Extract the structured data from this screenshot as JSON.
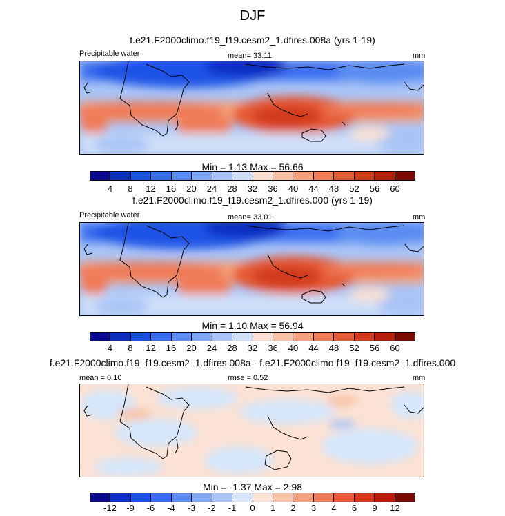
{
  "figure_title": "DJF",
  "panels": [
    {
      "run_title": "f.e21.F2000climo.f19_f19.cesm2_1.dfires.008a (yrs 1-19)",
      "left_label": "Precipitable water",
      "center_label": "mean=  33.11",
      "right_label": "mm",
      "minmax": "Min =  1.13 Max =  56.66"
    },
    {
      "run_title": "f.e21.F2000climo.f19_f19.cesm2_1.dfires.000 (yrs 1-19)",
      "left_label": "Precipitable water",
      "center_label": "mean=  33.01",
      "right_label": "mm",
      "minmax": "Min =  1.10 Max =  56.94"
    },
    {
      "run_title": "f.e21.F2000climo.f19_f19.cesm2_1.dfires.008a - f.e21.F2000climo.f19_f19.cesm2_1.dfires.000",
      "left_label": "mean =  0.10",
      "center_label": "rmse =  0.52",
      "right_label": "mm",
      "minmax": "Min = -1.37 Max =  2.98"
    }
  ],
  "colorbars": {
    "absolute": {
      "labels": [
        "4",
        "8",
        "12",
        "16",
        "20",
        "24",
        "28",
        "32",
        "36",
        "40",
        "44",
        "48",
        "52",
        "56",
        "60"
      ],
      "colors": [
        "#0a0a8c",
        "#0c2fc0",
        "#1a52e6",
        "#3a6ef0",
        "#5a8cf2",
        "#7fa8f4",
        "#a8c4f6",
        "#cfdff8",
        "#fbe0d2",
        "#f8c2a6",
        "#f5a07c",
        "#f07c58",
        "#e55a36",
        "#d23a1c",
        "#b41e0a",
        "#7a0a02"
      ]
    },
    "difference": {
      "labels": [
        "-12",
        "-9",
        "-6",
        "-4",
        "-3",
        "-2",
        "-1",
        "0",
        "1",
        "2",
        "3",
        "4",
        "6",
        "9",
        "12"
      ],
      "colors": [
        "#0a0a8c",
        "#0c2fc0",
        "#1a52e6",
        "#3a6ef0",
        "#5a8cf2",
        "#7fa8f4",
        "#a8c4f6",
        "#d6e6fa",
        "#fbe2d4",
        "#f8c2a6",
        "#f5a07c",
        "#f07c58",
        "#e55a36",
        "#d23a1c",
        "#b41e0a",
        "#7a0a02"
      ]
    }
  },
  "chart_data": [
    {
      "type": "heatmap",
      "title": "f.e21.F2000climo.f19_f19.cesm2_1.dfires.008a (yrs 1-19)",
      "variable": "Precipitable water",
      "units": "mm",
      "season": "DJF",
      "mean": 33.11,
      "min": 1.13,
      "max": 56.66,
      "contour_levels": [
        4,
        8,
        12,
        16,
        20,
        24,
        28,
        32,
        36,
        40,
        44,
        48,
        52,
        56,
        60
      ]
    },
    {
      "type": "heatmap",
      "title": "f.e21.F2000climo.f19_f19.cesm2_1.dfires.000 (yrs 1-19)",
      "variable": "Precipitable water",
      "units": "mm",
      "season": "DJF",
      "mean": 33.01,
      "min": 1.1,
      "max": 56.94,
      "contour_levels": [
        4,
        8,
        12,
        16,
        20,
        24,
        28,
        32,
        36,
        40,
        44,
        48,
        52,
        56,
        60
      ]
    },
    {
      "type": "heatmap",
      "title": "f.e21.F2000climo.f19_f19.cesm2_1.dfires.008a - f.e21.F2000climo.f19_f19.cesm2_1.dfires.000",
      "units": "mm",
      "season": "DJF",
      "mean": 0.1,
      "rmse": 0.52,
      "min": -1.37,
      "max": 2.98,
      "contour_levels": [
        -12,
        -9,
        -6,
        -4,
        -3,
        -2,
        -1,
        0,
        1,
        2,
        3,
        4,
        6,
        9,
        12
      ]
    }
  ]
}
